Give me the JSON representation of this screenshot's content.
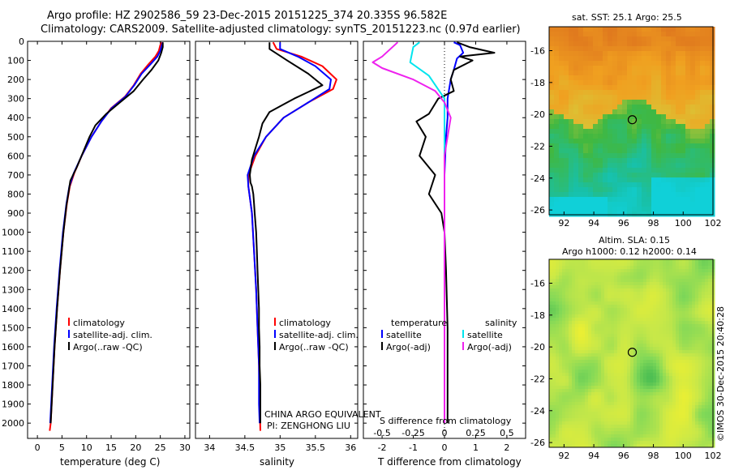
{
  "title_line1": "Argo profile: HZ 2902586_59 23-Dec-2015 20151225_374 20.335S 96.582E",
  "title_line2": "Climatology: CARS2009. Satellite-adjusted climatology: synTS_20151223.nc (0.97d earlier)",
  "colors": {
    "climatology": "#ff0000",
    "satellite": "#0000ff",
    "argo": "#000000",
    "salinity_satellite": "#00e5ee",
    "salinity_argo": "#ee22ee"
  },
  "chart_data": [
    {
      "type": "line",
      "name": "temperature_profile",
      "xlabel": "temperature (deg C)",
      "xlim": [
        -2,
        31
      ],
      "ylim": [
        2080,
        0
      ],
      "y_reversed": true,
      "xticks": [
        0,
        5,
        10,
        15,
        20,
        25,
        30
      ],
      "yticks": [
        0,
        100,
        200,
        300,
        400,
        500,
        600,
        700,
        800,
        900,
        1000,
        1100,
        1200,
        1300,
        1400,
        1500,
        1600,
        1700,
        1800,
        1900,
        2000
      ],
      "legend": {
        "placement": "lower-right",
        "entries": [
          "climatology",
          "satellite-adj. clim.",
          "Argo(..raw -QC)"
        ]
      },
      "series": [
        {
          "name": "climatology",
          "color": "#ff0000",
          "points": [
            [
              25.3,
              5
            ],
            [
              25.0,
              20
            ],
            [
              24.7,
              50
            ],
            [
              24.0,
              80
            ],
            [
              22.6,
              120
            ],
            [
              21.0,
              170
            ],
            [
              19.6,
              230
            ],
            [
              17.8,
              290
            ],
            [
              15.0,
              350
            ],
            [
              13.0,
              420
            ],
            [
              11.0,
              500
            ],
            [
              9.0,
              600
            ],
            [
              7.5,
              690
            ],
            [
              6.6,
              760
            ],
            [
              6.0,
              850
            ],
            [
              5.3,
              1000
            ],
            [
              4.6,
              1200
            ],
            [
              4.0,
              1400
            ],
            [
              3.5,
              1600
            ],
            [
              3.1,
              1800
            ],
            [
              2.7,
              2000
            ],
            [
              2.5,
              2040
            ]
          ]
        },
        {
          "name": "satellite-adj. clim.",
          "color": "#0000ff",
          "points": [
            [
              25.5,
              5
            ],
            [
              25.3,
              20
            ],
            [
              25.0,
              50
            ],
            [
              24.4,
              80
            ],
            [
              23.0,
              120
            ],
            [
              21.2,
              170
            ],
            [
              19.7,
              230
            ],
            [
              17.9,
              290
            ],
            [
              15.1,
              350
            ],
            [
              13.0,
              420
            ],
            [
              11.0,
              500
            ],
            [
              9.0,
              600
            ],
            [
              7.4,
              690
            ],
            [
              6.5,
              760
            ],
            [
              5.9,
              850
            ],
            [
              5.2,
              1000
            ],
            [
              4.5,
              1200
            ],
            [
              3.9,
              1400
            ],
            [
              3.4,
              1600
            ],
            [
              3.0,
              1800
            ],
            [
              2.6,
              2000
            ]
          ]
        },
        {
          "name": "Argo(..raw -QC)",
          "color": "#000000",
          "points": [
            [
              25.5,
              5
            ],
            [
              25.5,
              30
            ],
            [
              25.2,
              60
            ],
            [
              24.6,
              100
            ],
            [
              23.2,
              150
            ],
            [
              21.5,
              200
            ],
            [
              19.6,
              260
            ],
            [
              16.8,
              320
            ],
            [
              14.0,
              380
            ],
            [
              11.8,
              440
            ],
            [
              10.6,
              500
            ],
            [
              9.3,
              580
            ],
            [
              8.0,
              660
            ],
            [
              6.7,
              730
            ],
            [
              6.4,
              780
            ],
            [
              5.9,
              860
            ],
            [
              5.3,
              1000
            ],
            [
              4.6,
              1200
            ],
            [
              4.0,
              1400
            ],
            [
              3.5,
              1600
            ],
            [
              3.1,
              1800
            ],
            [
              2.7,
              2000
            ]
          ]
        }
      ]
    },
    {
      "type": "line",
      "name": "salinity_profile",
      "xlabel": "salinity",
      "xlim": [
        33.8,
        36.1
      ],
      "ylim": [
        2080,
        0
      ],
      "y_reversed": true,
      "xticks": [
        34,
        34.5,
        35,
        35.5,
        36
      ],
      "legend": {
        "placement": "lower-right",
        "entries": [
          "climatology",
          "satellite-adj. clim.",
          "Argo(..raw -QC)"
        ]
      },
      "annotations": [
        "CHINA ARGO EQUIVALENT",
        "PI: ZENGHONG LIU"
      ],
      "series": [
        {
          "name": "climatology",
          "color": "#ff0000",
          "points": [
            [
              34.9,
              5
            ],
            [
              34.95,
              40
            ],
            [
              35.3,
              80
            ],
            [
              35.6,
              130
            ],
            [
              35.8,
              200
            ],
            [
              35.75,
              250
            ],
            [
              35.4,
              320
            ],
            [
              35.05,
              400
            ],
            [
              34.8,
              500
            ],
            [
              34.65,
              600
            ],
            [
              34.55,
              700
            ],
            [
              34.55,
              760
            ],
            [
              34.6,
              900
            ],
            [
              34.63,
              1100
            ],
            [
              34.66,
              1300
            ],
            [
              34.68,
              1500
            ],
            [
              34.7,
              1700
            ],
            [
              34.71,
              1900
            ],
            [
              34.72,
              2040
            ]
          ]
        },
        {
          "name": "satellite-adj. clim.",
          "color": "#0000ff",
          "points": [
            [
              35.0,
              5
            ],
            [
              35.0,
              40
            ],
            [
              35.25,
              80
            ],
            [
              35.5,
              130
            ],
            [
              35.72,
              200
            ],
            [
              35.7,
              250
            ],
            [
              35.4,
              320
            ],
            [
              35.05,
              400
            ],
            [
              34.8,
              500
            ],
            [
              34.63,
              600
            ],
            [
              34.54,
              700
            ],
            [
              34.55,
              760
            ],
            [
              34.6,
              900
            ],
            [
              34.63,
              1100
            ],
            [
              34.66,
              1300
            ],
            [
              34.68,
              1500
            ],
            [
              34.7,
              1700
            ],
            [
              34.7,
              1900
            ],
            [
              34.71,
              2000
            ]
          ]
        },
        {
          "name": "Argo(..raw -QC)",
          "color": "#000000",
          "points": [
            [
              34.85,
              5
            ],
            [
              34.85,
              40
            ],
            [
              35.1,
              100
            ],
            [
              35.4,
              170
            ],
            [
              35.6,
              230
            ],
            [
              35.2,
              300
            ],
            [
              34.85,
              370
            ],
            [
              34.75,
              430
            ],
            [
              34.7,
              500
            ],
            [
              34.65,
              560
            ],
            [
              34.6,
              620
            ],
            [
              34.57,
              700
            ],
            [
              34.58,
              740
            ],
            [
              34.6,
              760
            ],
            [
              34.62,
              800
            ],
            [
              34.63,
              850
            ],
            [
              34.64,
              900
            ],
            [
              34.66,
              1000
            ],
            [
              34.67,
              1100
            ],
            [
              34.68,
              1200
            ],
            [
              34.69,
              1300
            ],
            [
              34.7,
              1400
            ],
            [
              34.7,
              1500
            ],
            [
              34.71,
              1600
            ],
            [
              34.71,
              1700
            ],
            [
              34.72,
              1800
            ],
            [
              34.72,
              1900
            ],
            [
              34.72,
              2000
            ]
          ]
        }
      ]
    },
    {
      "type": "line",
      "name": "difference_profile",
      "xlabel_top": "S difference from climatology",
      "xlabel_bottom": "T difference from climatology",
      "xlim": [
        -2.6,
        2.6
      ],
      "ylim": [
        2080,
        0
      ],
      "y_reversed": true,
      "xticks_T": [
        -2,
        -1,
        0,
        1,
        2
      ],
      "xtick_labels_S": [
        "-0.5",
        "-0.25",
        "0",
        "0.25",
        "0.5"
      ],
      "xtick_positions_S": [
        -2,
        -1,
        0,
        1,
        2
      ],
      "zero_line": true,
      "legend": {
        "placement": "lower-left",
        "headers": [
          "temperature",
          "salinity"
        ],
        "entries": [
          "satellite",
          "Argo(-adj)",
          "satellite",
          "Argo(-adj)"
        ]
      },
      "series": [
        {
          "name": "temperature satellite",
          "color": "#0000ff",
          "points": [
            [
              0.3,
              5
            ],
            [
              0.5,
              20
            ],
            [
              0.6,
              60
            ],
            [
              0.4,
              90
            ],
            [
              0.3,
              150
            ],
            [
              0.2,
              200
            ],
            [
              0.1,
              300
            ],
            [
              0.1,
              400
            ],
            [
              0.05,
              500
            ],
            [
              0.0,
              700
            ],
            [
              0.0,
              1000
            ],
            [
              0.0,
              2000
            ]
          ]
        },
        {
          "name": "temperature Argo(-adj)",
          "color": "#000000",
          "points": [
            [
              0.4,
              5
            ],
            [
              0.8,
              30
            ],
            [
              1.6,
              60
            ],
            [
              0.5,
              80
            ],
            [
              0.9,
              100
            ],
            [
              0.3,
              150
            ],
            [
              0.2,
              200
            ],
            [
              0.3,
              260
            ],
            [
              -0.2,
              300
            ],
            [
              -0.5,
              380
            ],
            [
              -0.9,
              420
            ],
            [
              -0.6,
              500
            ],
            [
              -0.8,
              600
            ],
            [
              -0.3,
              700
            ],
            [
              -0.5,
              800
            ],
            [
              -0.1,
              900
            ],
            [
              0.0,
              1000
            ],
            [
              0.05,
              1200
            ],
            [
              0.1,
              1500
            ],
            [
              0.1,
              1800
            ],
            [
              0.1,
              2000
            ]
          ]
        },
        {
          "name": "salinity satellite",
          "color": "#00e5ee",
          "points": [
            [
              -0.8,
              5
            ],
            [
              -1.0,
              30
            ],
            [
              -1.1,
              110
            ],
            [
              -0.5,
              180
            ],
            [
              0.0,
              300
            ],
            [
              0.0,
              2000
            ]
          ]
        },
        {
          "name": "salinity Argo(-adj)",
          "color": "#ee22ee",
          "points": [
            [
              -1.5,
              5
            ],
            [
              -2.0,
              80
            ],
            [
              -2.3,
              110
            ],
            [
              -2.0,
              140
            ],
            [
              -1.0,
              200
            ],
            [
              -0.3,
              260
            ],
            [
              0.0,
              320
            ],
            [
              0.2,
              400
            ],
            [
              0.1,
              500
            ],
            [
              0.0,
              600
            ],
            [
              0.0,
              700
            ],
            [
              0.0,
              1000
            ],
            [
              0.0,
              2000
            ]
          ]
        }
      ]
    },
    {
      "type": "heatmap",
      "name": "sst_map",
      "title": "sat. SST: 25.1 Argo: 25.5",
      "xlim": [
        91,
        102
      ],
      "ylim": [
        -26.3,
        -14.5
      ],
      "xticks": [
        92,
        94,
        96,
        98,
        100,
        102
      ],
      "yticks": [
        -16,
        -18,
        -20,
        -22,
        -24,
        -26
      ],
      "marker": {
        "lon": 96.582,
        "lat": -20.335
      },
      "palette": [
        "#e07a1e",
        "#f0a020",
        "#d8c838",
        "#40b840",
        "#18c0a8",
        "#10d0d8"
      ]
    },
    {
      "type": "heatmap",
      "name": "sla_map",
      "title_line1": "Altim. SLA: 0.15",
      "title_line2": "Argo h1000: 0.12 h2000: 0.14",
      "xlim": [
        91,
        102
      ],
      "ylim": [
        -26.3,
        -14.5
      ],
      "xticks": [
        92,
        94,
        96,
        98,
        100,
        102
      ],
      "yticks": [
        -16,
        -18,
        -20,
        -22,
        -24,
        -26
      ],
      "marker": {
        "lon": 96.582,
        "lat": -20.335
      },
      "palette": [
        "#f0f030",
        "#c8e848",
        "#80d858",
        "#30b050"
      ]
    }
  ],
  "watermark": "©IMOS 30-Dec-2015 20:40:28"
}
